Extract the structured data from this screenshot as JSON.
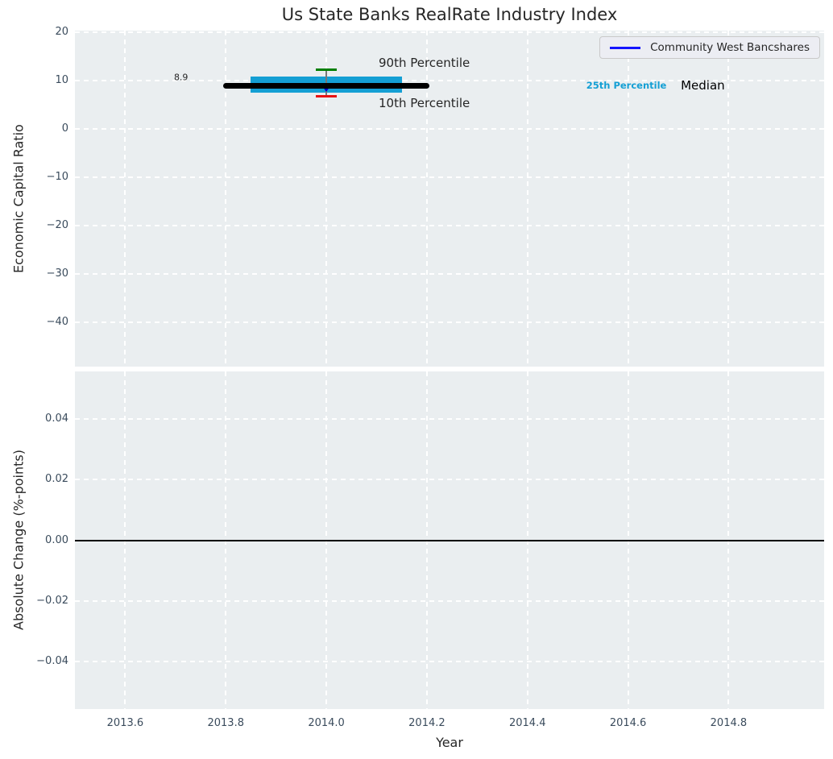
{
  "figure": {
    "background": "#ffffff",
    "plot_background": "#eaeef0",
    "grid_color": "#ffffff",
    "tick_label_color": "#3a4b5c",
    "text_color": "#262626"
  },
  "chart_data": [
    {
      "type": "line",
      "panel": "top",
      "title": "Us State Banks RealRate Industry Index",
      "ylabel": "Economic Capital Ratio",
      "xlim": [
        2013.5,
        2014.99
      ],
      "ylim": [
        -49.2,
        20.35
      ],
      "grid": true,
      "yticks": {
        "values": [
          20,
          10,
          0,
          -10,
          -20,
          -30,
          -40
        ],
        "labels": [
          "20",
          "10",
          "0",
          "−10",
          "−20",
          "−30",
          "−40"
        ]
      },
      "xticks": {
        "values": [
          2013.6,
          2013.8,
          2014.0,
          2014.2,
          2014.4,
          2014.6,
          2014.8
        ],
        "labels": []
      },
      "median_line": {
        "label": "Median",
        "x0": 2013.8,
        "x1": 2014.2,
        "y": 8.9,
        "color": "#000000",
        "linewidth": 7
      },
      "percentile_band": {
        "label": "25th Percentile",
        "x0": 2013.85,
        "x1": 2014.15,
        "y_low": 7.5,
        "y_high": 10.8,
        "color": "#149fd4"
      },
      "whisker": {
        "x": 2014.0,
        "p10": 6.7,
        "p90": 12.2,
        "p10_label": "10th Percentile",
        "p90_label": "90th Percentile",
        "p10_color": "#e81212",
        "p90_color": "#007f00",
        "line_color": "#777777",
        "cap_width": 26
      },
      "company_point": {
        "label": "Community West Bancshares",
        "x": 2014.0,
        "y": 8.5,
        "marker": "triangle-down",
        "color": "#0000cc"
      },
      "annotations": [
        {
          "text": "8.9",
          "x": 2013.711,
          "y": 10.68,
          "ha": "center",
          "color": "#262626",
          "size": 11,
          "weight": "normal"
        },
        {
          "text": "90th Percentile",
          "x": 2014.104,
          "y": 13.68,
          "ha": "left",
          "color": "#262626",
          "size": 15,
          "weight": "normal"
        },
        {
          "text": "10th Percentile",
          "x": 2014.104,
          "y": 5.34,
          "ha": "left",
          "color": "#262626",
          "size": 15,
          "weight": "normal"
        },
        {
          "text": "25th Percentile",
          "x": 2014.517,
          "y": 9.0,
          "ha": "left",
          "color": "#149fd4",
          "size": 11.5,
          "weight": "bold"
        },
        {
          "text": "Median",
          "x": 2014.705,
          "y": 9.0,
          "ha": "left",
          "color": "#000000",
          "size": 15,
          "weight": "normal"
        }
      ],
      "legend": {
        "position": "upper right",
        "entries": [
          {
            "label": "Community West Bancshares",
            "color": "#1414ff"
          }
        ]
      }
    },
    {
      "type": "line",
      "panel": "bottom",
      "ylabel": "Absolute Change (%-points)",
      "xlabel": "Year",
      "xlim": [
        2013.5,
        2014.99
      ],
      "ylim": [
        -0.0555,
        0.0555
      ],
      "grid": true,
      "yticks": {
        "values": [
          0.04,
          0.02,
          0.0,
          -0.02,
          -0.04
        ],
        "labels": [
          "0.04",
          "0.02",
          "0.00",
          "−0.02",
          "−0.04"
        ]
      },
      "xticks": {
        "values": [
          2013.6,
          2013.8,
          2014.0,
          2014.2,
          2014.4,
          2014.6,
          2014.8
        ],
        "labels": [
          "2013.6",
          "2013.8",
          "2014.0",
          "2014.2",
          "2014.4",
          "2014.6",
          "2014.8"
        ]
      },
      "axhline": {
        "y": 0.0,
        "color": "#000000",
        "linewidth": 2
      }
    }
  ]
}
